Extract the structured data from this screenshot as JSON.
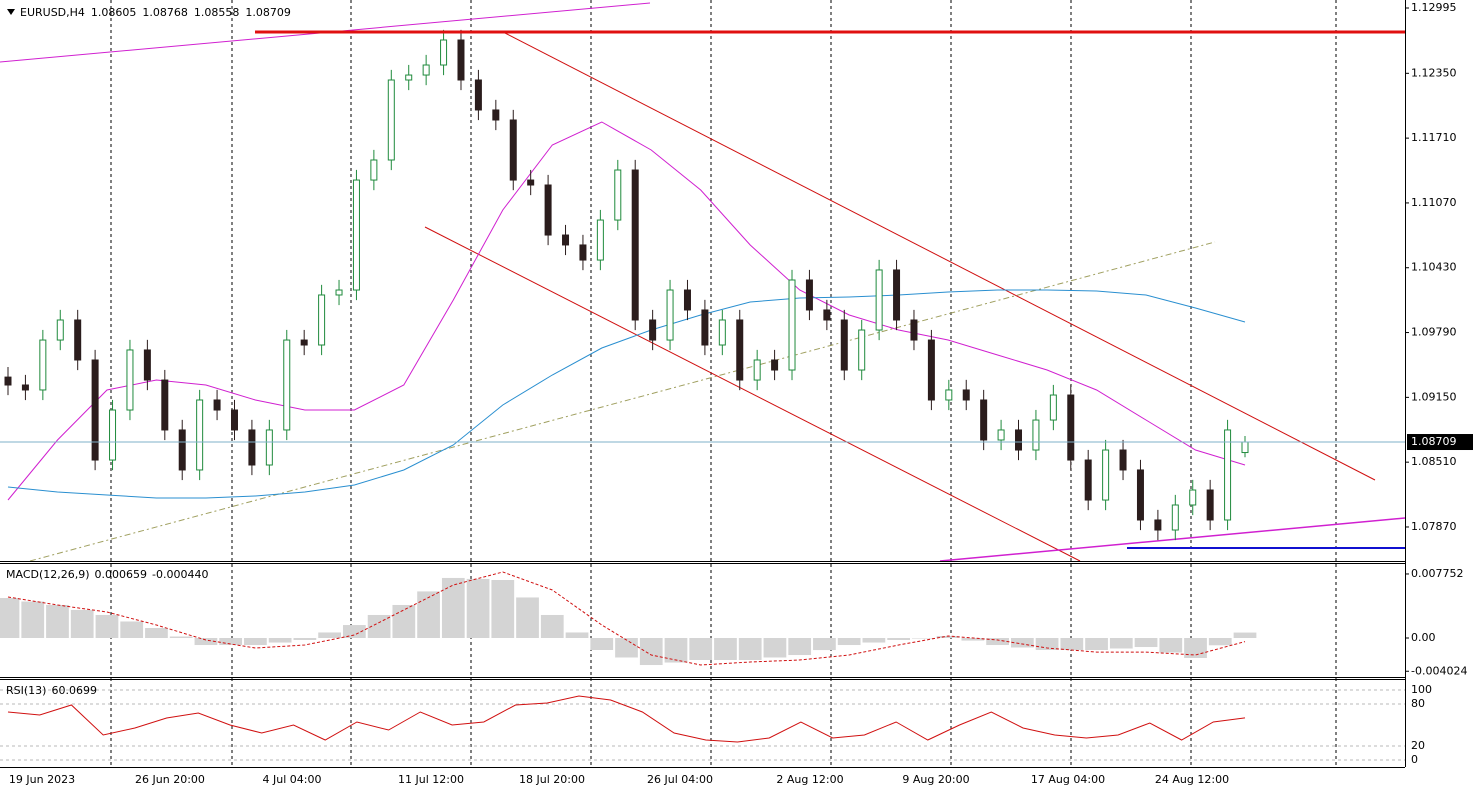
{
  "chart_data": {
    "type": "candlestick",
    "symbol": "EURUSD,H4",
    "up_color": "#1f8a3c",
    "down_color": "#2b1d1d",
    "open": [
      1.0935,
      1.09272,
      1.09223,
      1.09716,
      1.09914,
      1.09519,
      1.08531,
      1.09025,
      1.09618,
      1.09321,
      1.08828,
      1.08433,
      1.09124,
      1.09025,
      1.08828,
      1.08482,
      1.08828,
      1.09716,
      1.09667,
      1.10161,
      1.1021,
      1.11296,
      1.11494,
      1.12284,
      1.12333,
      1.12432,
      1.12679,
      1.12284,
      1.11988,
      1.11889,
      1.11296,
      1.11247,
      1.10753,
      1.10655,
      1.10506,
      1.10901,
      1.11395,
      1.09914,
      1.09716,
      1.1021,
      1.10013,
      1.09667,
      1.09914,
      1.09321,
      1.09519,
      1.0942,
      1.10309,
      1.10013,
      1.09914,
      1.0942,
      1.09815,
      1.10408,
      1.09914,
      1.09716,
      1.09124,
      1.09223,
      1.09124,
      1.08729,
      1.08828,
      1.0863,
      1.08926,
      1.09173,
      1.08531,
      1.08136,
      1.0863,
      1.08433,
      1.07939,
      1.0784,
      1.08087,
      1.08235,
      1.07939,
      1.08605
    ],
    "high": [
      1.0945,
      1.09372,
      1.09816,
      1.10014,
      1.10014,
      1.09619,
      1.09125,
      1.09718,
      1.09718,
      1.09421,
      1.08928,
      1.09224,
      1.09224,
      1.09125,
      1.08928,
      1.08928,
      1.09816,
      1.09816,
      1.10261,
      1.1031,
      1.11396,
      1.11594,
      1.12384,
      1.12433,
      1.12532,
      1.12779,
      1.12779,
      1.12384,
      1.12088,
      1.11989,
      1.11396,
      1.11347,
      1.10853,
      1.10755,
      1.11001,
      1.11495,
      1.11495,
      1.10014,
      1.1031,
      1.1031,
      1.10113,
      1.10014,
      1.10014,
      1.09619,
      1.09619,
      1.10409,
      1.10409,
      1.10113,
      1.10014,
      1.09915,
      1.10508,
      1.10508,
      1.10014,
      1.09816,
      1.09323,
      1.09323,
      1.09224,
      1.08928,
      1.08928,
      1.09026,
      1.09273,
      1.09273,
      1.08631,
      1.0873,
      1.0873,
      1.08533,
      1.08039,
      1.08187,
      1.08335,
      1.08335,
      1.08928,
      1.08768
    ],
    "low": [
      1.09172,
      1.09123,
      1.09123,
      1.09616,
      1.09419,
      1.08431,
      1.08431,
      1.08925,
      1.09221,
      1.08728,
      1.08333,
      1.08333,
      1.08925,
      1.08728,
      1.08382,
      1.08382,
      1.08728,
      1.09567,
      1.09567,
      1.10061,
      1.1011,
      1.11196,
      1.11394,
      1.12184,
      1.12233,
      1.12332,
      1.12184,
      1.11888,
      1.11789,
      1.11196,
      1.11147,
      1.10653,
      1.10555,
      1.10406,
      1.10406,
      1.10801,
      1.09814,
      1.09616,
      1.09616,
      1.09913,
      1.09567,
      1.09567,
      1.09221,
      1.09221,
      1.0932,
      1.0932,
      1.09913,
      1.09814,
      1.0932,
      1.0932,
      1.09715,
      1.09814,
      1.09616,
      1.09024,
      1.09024,
      1.09024,
      1.08629,
      1.08629,
      1.0853,
      1.0853,
      1.08826,
      1.08431,
      1.08036,
      1.08036,
      1.08333,
      1.07839,
      1.0774,
      1.0774,
      1.07987,
      1.07839,
      1.07839,
      1.08558
    ],
    "close": [
      1.09272,
      1.09223,
      1.09716,
      1.09914,
      1.09519,
      1.08531,
      1.09025,
      1.09618,
      1.09321,
      1.08828,
      1.08433,
      1.09124,
      1.09025,
      1.08828,
      1.08482,
      1.08828,
      1.09716,
      1.09667,
      1.10161,
      1.1021,
      1.11296,
      1.11494,
      1.12284,
      1.12333,
      1.12432,
      1.12679,
      1.12284,
      1.11988,
      1.11889,
      1.11296,
      1.11247,
      1.10753,
      1.10655,
      1.10506,
      1.10901,
      1.11395,
      1.09914,
      1.09716,
      1.1021,
      1.10013,
      1.09667,
      1.09914,
      1.09321,
      1.09519,
      1.0942,
      1.10309,
      1.10013,
      1.09914,
      1.0942,
      1.09815,
      1.10408,
      1.09914,
      1.09716,
      1.09124,
      1.09223,
      1.09124,
      1.08729,
      1.08828,
      1.0863,
      1.08926,
      1.09173,
      1.08531,
      1.08136,
      1.0863,
      1.08433,
      1.07939,
      1.0784,
      1.08087,
      1.08235,
      1.07939,
      1.08828,
      1.08709
    ],
    "moving_averages": [
      {
        "color": "#d020d0",
        "values": [
          1.08136,
          1.08729,
          1.09223,
          1.09321,
          1.09272,
          1.09124,
          1.09025,
          1.09025,
          1.09272,
          1.10111,
          1.11,
          1.11642,
          1.11869,
          1.11593,
          1.11198,
          1.10655,
          1.1021,
          1.09963,
          1.09815,
          1.09716,
          1.09568,
          1.0942,
          1.09223,
          1.08926,
          1.0863,
          1.08482
        ]
      },
      {
        "color": "#2a8fd0",
        "values": [
          1.08265,
          1.08215,
          1.08186,
          1.08156,
          1.08156,
          1.08176,
          1.08215,
          1.08285,
          1.08433,
          1.0868,
          1.09075,
          1.09371,
          1.09637,
          1.09815,
          1.09963,
          1.10092,
          1.10131,
          1.10141,
          1.10161,
          1.1019,
          1.1021,
          1.1021,
          1.102,
          1.10161,
          1.10032,
          1.09894
        ]
      }
    ],
    "ylim": [
      1.07534,
      1.13074
    ],
    "yticks": [
      1.12995,
      {
        "value": 1.1235,
        "label": "1.12350"
      },
      {
        "value": 1.1171,
        "label": "1.11710"
      },
      {
        "value": 1.1107,
        "label": "1.11070"
      },
      {
        "value": 1.1043,
        "label": "1.10430"
      },
      {
        "value": 1.0979,
        "label": "1.09790"
      },
      {
        "value": 1.0915,
        "label": "1.09150"
      },
      {
        "value": 1.0851,
        "label": "1.08510"
      },
      {
        "value": 1.0787,
        "label": "1.07870"
      }
    ],
    "x_labels": [
      "19 Jun 2023",
      "26 Jun 20:00",
      "4 Jul 04:00",
      "11 Jul 12:00",
      "18 Jul 20:00",
      "26 Jul 04:00",
      "2 Aug 12:00",
      "9 Aug 20:00",
      "17 Aug 04:00",
      "24 Aug 12:00"
    ],
    "macd": {
      "title": "MACD(12,26,9)",
      "values": [
        0.000659,
        -0.00044
      ],
      "value_labels": [
        "0.000659",
        "-0.000440"
      ],
      "histogram": [
        0.00484,
        0.00442,
        0.004,
        0.0034,
        0.00279,
        0.002,
        0.00121,
        0.00018,
        -0.00085,
        -0.00085,
        -0.00085,
        -0.00055,
        -0.00024,
        0.00067,
        0.00157,
        0.00279,
        0.004,
        0.00564,
        0.00727,
        0.00715,
        0.00702,
        0.00491,
        0.00279,
        0.00067,
        -0.00145,
        -0.00236,
        -0.00327,
        -0.00297,
        -0.00266,
        -0.00266,
        -0.00266,
        -0.00236,
        -0.00206,
        -0.00146,
        -0.00085,
        -0.00055,
        -0.00024,
        0,
        0.00024,
        -0.00031,
        -0.00085,
        -0.00115,
        -0.00145,
        -0.00145,
        -0.00145,
        -0.00127,
        -0.00109,
        -0.00176,
        -0.00242,
        -0.00088,
        0.00066
      ],
      "signal": [
        0.00496,
        0.004,
        0.00315,
        0.00157,
        -0.00024,
        -0.00121,
        -0.00085,
        0.00036,
        0.00339,
        0.00642,
        0.00799,
        0.00581,
        0.00157,
        -0.00206,
        -0.00327,
        -0.00291,
        -0.00266,
        -0.00206,
        -0.00085,
        0.00024,
        -0.00024,
        -0.00121,
        -0.0017,
        -0.0017,
        -0.00206,
        -0.00044
      ],
      "ylim": [
        -0.00472,
        0.00908
      ],
      "yticks": [
        0.007752,
        {
          "value": 0,
          "label": "0.00"
        },
        -0.004024
      ]
    },
    "rsi": {
      "title": "RSI(13)",
      "value": 60.0699,
      "values": [
        68.6,
        64.3,
        78.6,
        35.7,
        45.7,
        60.0,
        67.1,
        50.0,
        38.6,
        50.0,
        28.6,
        54.3,
        42.9,
        68.6,
        50.0,
        54.3,
        78.6,
        81.4,
        91.4,
        85.7,
        68.6,
        38.6,
        28.6,
        25.7,
        31.4,
        54.3,
        31.4,
        35.7,
        54.3,
        28.6,
        50.0,
        68.6,
        45.7,
        35.7,
        31.4,
        35.7,
        52.9,
        28.6,
        54.3,
        60.0699
      ],
      "ylim": [
        -10,
        115.7
      ],
      "yticks": [
        100,
        80,
        20,
        0
      ]
    }
  }
}
